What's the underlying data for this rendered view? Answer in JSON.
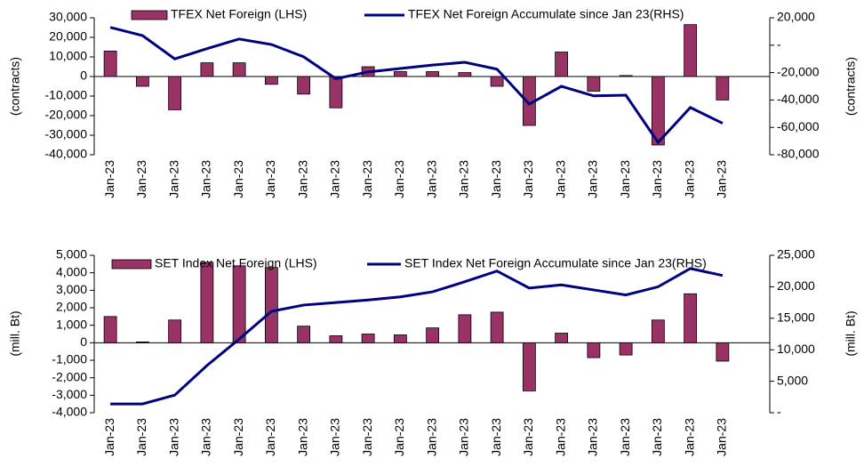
{
  "chart_data": [
    {
      "type": "combo",
      "y_label": "(contracts)",
      "y2_label": "(contracts)",
      "categories": [
        "Jan-23",
        "Jan-23",
        "Jan-23",
        "Jan-23",
        "Jan-23",
        "Jan-23",
        "Jan-23",
        "Jan-23",
        "Jan-23",
        "Jan-23",
        "Jan-23",
        "Jan-23",
        "Jan-23",
        "Jan-23",
        "Jan-23",
        "Jan-23",
        "Jan-23",
        "Jan-23",
        "Jan-23",
        "Jan-23"
      ],
      "series": [
        {
          "name": "TFEX Net Foreign (LHS)",
          "type": "bar",
          "color": "#993366",
          "values": [
            13000,
            -5000,
            -17000,
            7000,
            7000,
            -4000,
            -9000,
            -16000,
            5000,
            2500,
            2500,
            2000,
            -5000,
            -25000,
            12500,
            -7500,
            500,
            -35000,
            26500,
            -12000
          ]
        },
        {
          "name": "TFEX Net Foreign Accumulate since Jan 23(RHS)",
          "type": "line",
          "axis": "y2",
          "color": "#000080",
          "values": [
            13000,
            7000,
            -10000,
            -2500,
            4500,
            500,
            -8500,
            -24500,
            -19500,
            -17000,
            -14500,
            -12500,
            -17500,
            -43000,
            -30000,
            -37000,
            -36500,
            -71000,
            -45500,
            -57000
          ]
        }
      ],
      "ylim": [
        -40000,
        30000
      ],
      "yticks": [
        {
          "value": 30000,
          "label": "30,000"
        },
        {
          "value": 20000,
          "label": "20,000"
        },
        {
          "value": 10000,
          "label": "10,000"
        },
        0,
        {
          "value": -10000,
          "label": "-10,000"
        },
        {
          "value": -20000,
          "label": "-20,000"
        },
        {
          "value": -30000,
          "label": "-30,000"
        },
        {
          "value": -40000,
          "label": "-40,000"
        }
      ],
      "y2lim": [
        -80000,
        20000
      ],
      "y2ticks": [
        {
          "value": 20000,
          "label": "20,000"
        },
        {
          "value": 0,
          "label": "-"
        },
        {
          "value": -20000,
          "label": "-20,000"
        },
        {
          "value": -40000,
          "label": "-40,000"
        },
        {
          "value": -60000,
          "label": "-60,000"
        },
        {
          "value": -80000,
          "label": "-80,000"
        }
      ]
    },
    {
      "type": "combo",
      "y_label": "(mill. Bt)",
      "y2_label": "(mill. Bt)",
      "categories": [
        "Jan-23",
        "Jan-23",
        "Jan-23",
        "Jan-23",
        "Jan-23",
        "Jan-23",
        "Jan-23",
        "Jan-23",
        "Jan-23",
        "Jan-23",
        "Jan-23",
        "Jan-23",
        "Jan-23",
        "Jan-23",
        "Jan-23",
        "Jan-23",
        "Jan-23",
        "Jan-23",
        "Jan-23",
        "Jan-23"
      ],
      "series": [
        {
          "name": "SET Index Net Foreign (LHS)",
          "type": "bar",
          "color": "#993366",
          "values": [
            1500,
            50,
            1300,
            4600,
            4400,
            4300,
            950,
            400,
            500,
            450,
            850,
            1600,
            1750,
            -2750,
            550,
            -850,
            -700,
            1300,
            2800,
            -1050
          ]
        },
        {
          "name": "SET Index Net Foreign Accumulate since Jan 23(RHS)",
          "type": "line",
          "axis": "y2",
          "color": "#000080",
          "values": [
            1400,
            1400,
            2800,
            7500,
            11700,
            16100,
            17100,
            17500,
            17900,
            18400,
            19200,
            20800,
            22500,
            19800,
            20300,
            19500,
            18700,
            20000,
            22900,
            21800
          ]
        }
      ],
      "ylim": [
        -4000,
        5000
      ],
      "yticks": [
        {
          "value": 5000,
          "label": "5,000"
        },
        {
          "value": 4000,
          "label": "4,000"
        },
        {
          "value": 3000,
          "label": "3,000"
        },
        {
          "value": 2000,
          "label": "2,000"
        },
        {
          "value": 1000,
          "label": "1,000"
        },
        0,
        {
          "value": -1000,
          "label": "-1,000"
        },
        {
          "value": -2000,
          "label": "-2,000"
        },
        {
          "value": -3000,
          "label": "-3,000"
        },
        {
          "value": -4000,
          "label": "-4,000"
        }
      ],
      "y2lim": [
        0,
        25000
      ],
      "y2ticks": [
        {
          "value": 25000,
          "label": "25,000"
        },
        {
          "value": 20000,
          "label": "20,000"
        },
        {
          "value": 15000,
          "label": "15,000"
        },
        {
          "value": 10000,
          "label": "10,000"
        },
        {
          "value": 5000,
          "label": "5,000"
        },
        {
          "value": 0,
          "label": "-"
        }
      ]
    }
  ]
}
